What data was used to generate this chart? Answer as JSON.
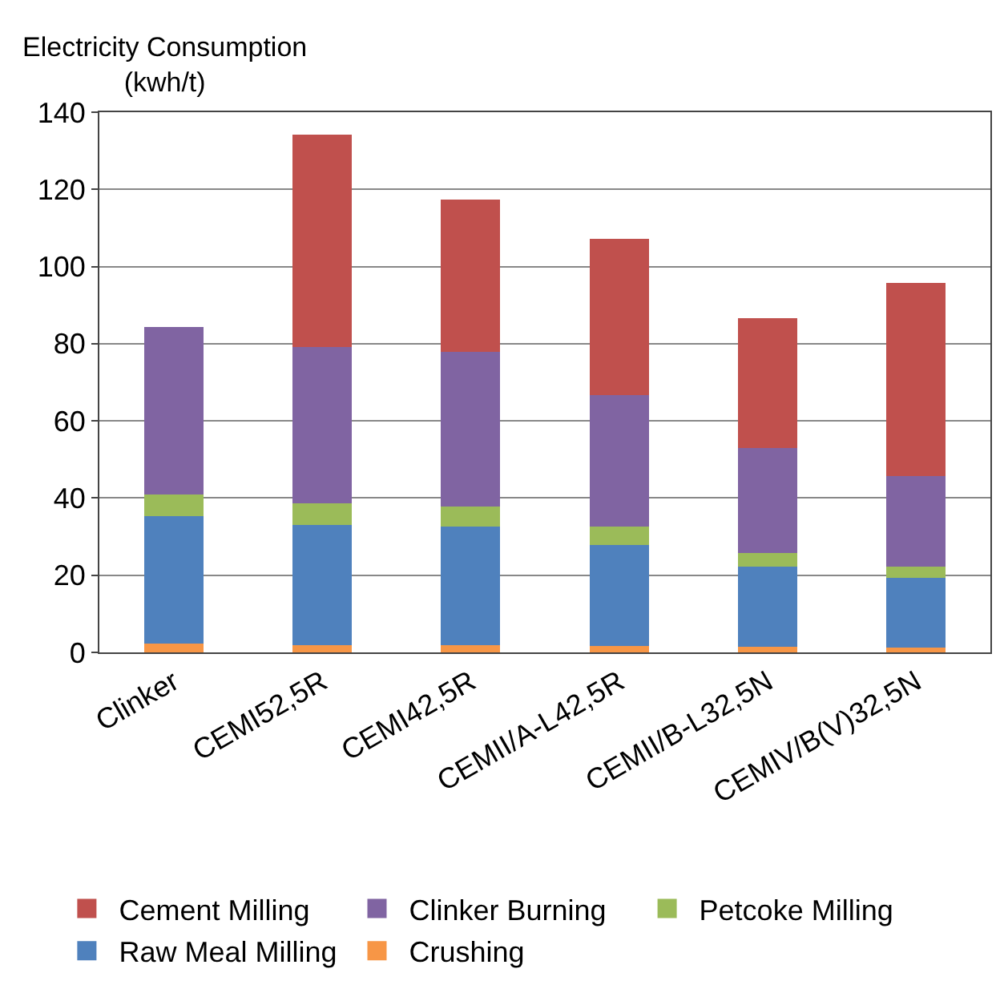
{
  "chart_data": {
    "type": "bar",
    "stacked": true,
    "ylabel": "Electricity Consumption\n(kwh/t)",
    "categories": [
      "Clinker",
      "CEMI52,5R",
      "CEMI42,5R",
      "CEMII/A-L42,5R",
      "CEMII/B-L32,5N",
      "CEMIV/B(V)32,5N"
    ],
    "series": [
      {
        "name": "Crushing",
        "color": "#f79646",
        "values": [
          2.2,
          1.9,
          1.9,
          1.7,
          1.4,
          1.2
        ]
      },
      {
        "name": "Raw Meal Milling",
        "color": "#4f81bd",
        "values": [
          33.2,
          31.2,
          30.8,
          26.2,
          20.8,
          18.1
        ]
      },
      {
        "name": "Petcoke Milling",
        "color": "#9bbb59",
        "values": [
          5.6,
          5.5,
          5.2,
          4.7,
          3.6,
          3.0
        ]
      },
      {
        "name": "Clinker Burning",
        "color": "#8064a2",
        "values": [
          43.4,
          40.6,
          39.9,
          34.1,
          27.2,
          23.4
        ]
      },
      {
        "name": "Cement Milling",
        "color": "#c0504d",
        "values": [
          null,
          54.9,
          39.5,
          40.5,
          33.7,
          50.1
        ]
      }
    ],
    "ylim": [
      0,
      140
    ],
    "yticks": [
      0,
      20,
      40,
      60,
      80,
      100,
      120,
      140
    ],
    "grid": "y",
    "legend": "bottom"
  }
}
